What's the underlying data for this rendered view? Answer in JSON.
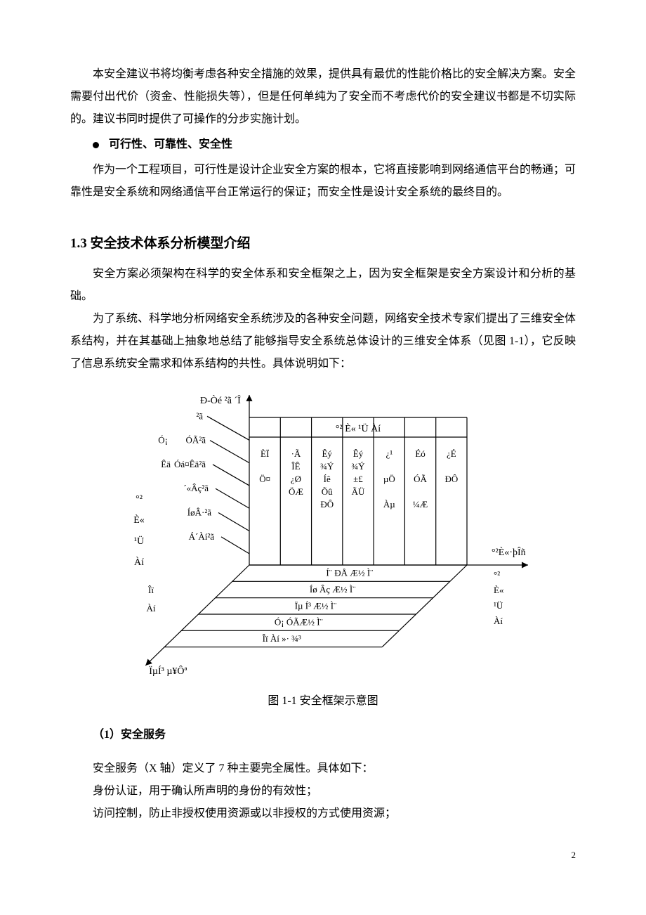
{
  "p1": "本安全建议书将均衡考虑各种安全措施的效果，提供具有最优的性能价格比的安全解决方案。安全需要付出代价（资金、性能损失等），但是任何单纯为了安全而不考虑代价的安全建议书都是不切实际的。建议书同时提供了可操作的分步实施计划。",
  "bullet1": "可行性、可靠性、安全性",
  "p2": "作为一个工程项目，可行性是设计企业安全方案的根本，它将直接影响到网络通信平台的畅通；可靠性是安全系统和网络通信平台正常运行的保证；而安全性是设计安全系统的最终目的。",
  "h2": "1.3 安全技术体系分析模型介绍",
  "p3": "安全方案必须架构在科学的安全体系和安全框架之上，因为安全框架是安全方案设计和分析的基础。",
  "p4": "为了系统、科学地分析网络安全系统涉及的各种安全问题，网络安全技术专家们提出了三维安全体系结构，并在其基础上抽象地总结了能够指导安全系统总体设计的三维安全体系（见图 1-1），它反映了信息系统安全需求和体系结构的共性。具体说明如下：",
  "caption": "图 1-1 安全框架示意图",
  "sub1": "（1）安全服务",
  "p5": "安全服务（X 轴）定义了 7 种主要完全属性。具体如下：",
  "p6": "身份认证，用于确认所声明的身份的有效性；",
  "p7": "访问控制，防止非授权使用资源或以非授权的方式使用资源；",
  "pagenum": "2",
  "fig": {
    "colors": {
      "stroke": "#000000",
      "fill": "#ffffff",
      "text": "#000000"
    },
    "stroke_width": 1.2,
    "font_size_small": 13,
    "font_size_label": 14,
    "z_axis_label": "Ð-Òé ²ã ´Î",
    "x_axis_label": "°²È«·þÎñ",
    "y_axis_label": "ÏµÍ³ µ¥Ôª",
    "top_banner": "°²   È«   ¹Ü   Àí",
    "cols": [
      "ÈÏ\n\nÖ¤",
      "·Ã\nÎÊ\n¿Ø\nÖÆ",
      "Êý\n¾Ý\nÍê\nÕû\nÐÔ",
      "Êý\n¾Ý\n±£\nÃÜ",
      "¿¹\n\nµÖ\n\nÀµ",
      "Éó\n\nÓÃ\n\n¼Æ",
      "¿É\n\nÐÔ"
    ],
    "x_right_stack": [
      "°²",
      "È«",
      "¹Ü",
      "Àí"
    ],
    "z_left_stack": [
      "°²",
      "È«",
      "¹Ü",
      "Àí"
    ],
    "z_planes": [
      "²ã",
      "ÓÃ²ã",
      "Óá¤Êä²ã",
      "´«Âç²ã",
      "ÍøÂ·²ã",
      "Á´Àí²ã"
    ],
    "z_prefix": [
      "",
      "Ó¡",
      "Êä",
      "",
      "",
      ""
    ],
    "y_rows": [
      "Í¨  ÐÅ  Æ½  Ì¨",
      "Íø  Âç  Æ½  Ì¨",
      "Ïµ  Í³  Æ½  Ì¨",
      "Ó¡  ÓÃÆ½  Ì¨",
      "Îï  Àí  »·  ¾³"
    ],
    "y_row_prefix": [
      "",
      "",
      "",
      "",
      ""
    ],
    "left_stack2": [
      "Îï",
      "Àí"
    ]
  }
}
